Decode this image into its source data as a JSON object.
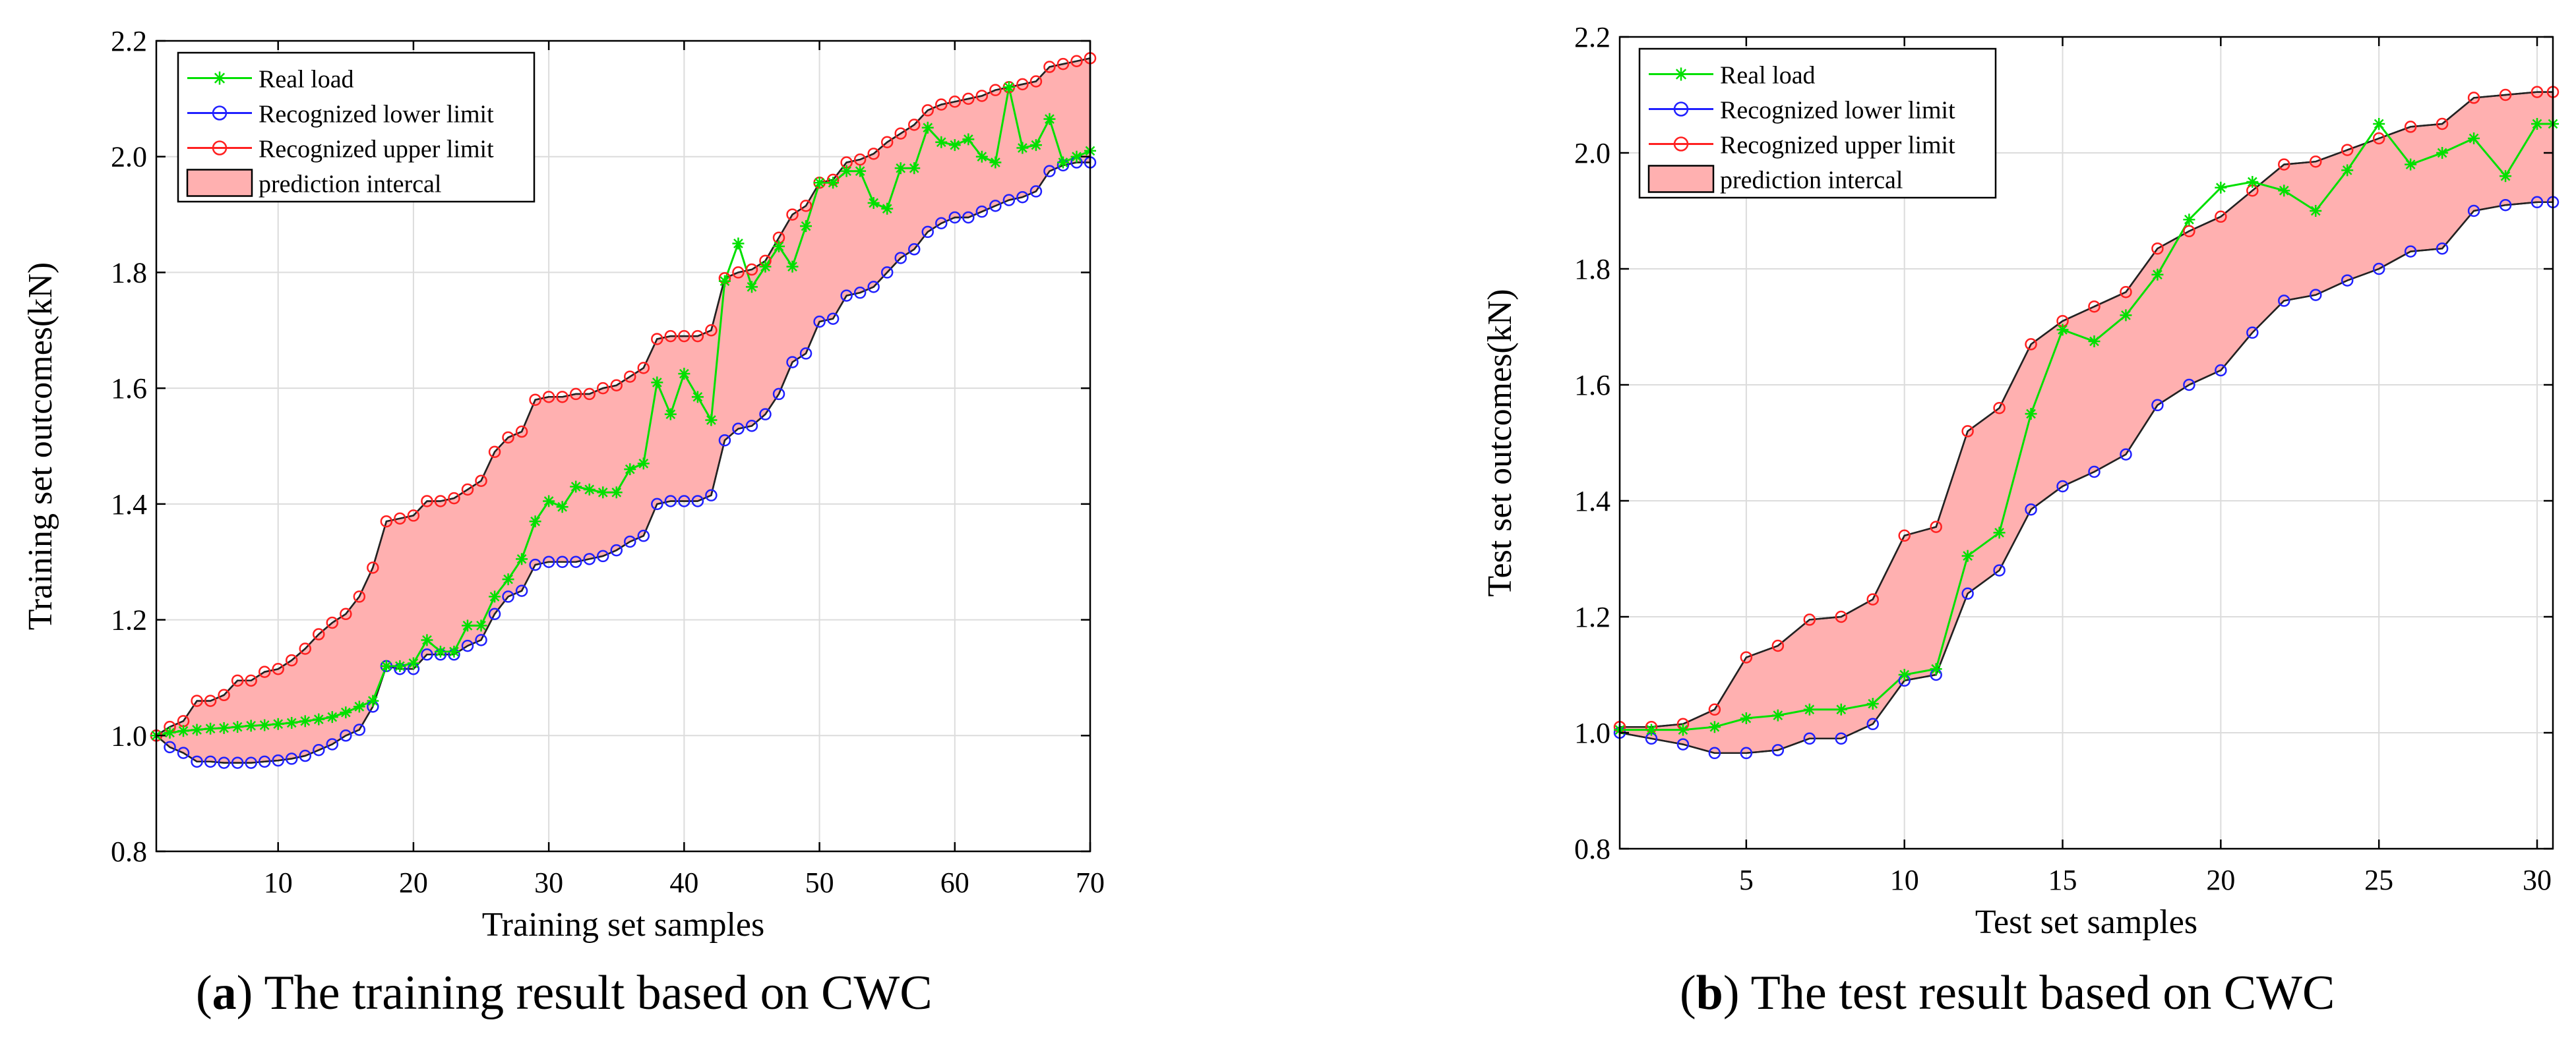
{
  "chart_data": [
    {
      "type": "line",
      "caption_label": "a",
      "caption_text": "The training result based on CWC",
      "xlabel": "Training set samples",
      "ylabel": "Training set outcomes(kN)",
      "xlim": [
        1,
        70
      ],
      "ylim": [
        0.8,
        2.2
      ],
      "xticks": [
        10,
        20,
        30,
        40,
        50,
        60,
        70
      ],
      "yticks": [
        0.8,
        1.0,
        1.2,
        1.4,
        1.6,
        1.8,
        2.0,
        2.2
      ],
      "grid": true,
      "legend": {
        "placement": "top-left",
        "entries": [
          "Real load",
          "Recognized lower limit",
          "Recognized upper limit",
          "prediction intercal"
        ]
      },
      "colors": {
        "real": "#00e000",
        "lower": "#2020ff",
        "upper": "#ff2020",
        "band": "#ffb0b0"
      },
      "x": [
        1,
        2,
        3,
        4,
        5,
        6,
        7,
        8,
        9,
        10,
        11,
        12,
        13,
        14,
        15,
        16,
        17,
        18,
        19,
        20,
        21,
        22,
        23,
        24,
        25,
        26,
        27,
        28,
        29,
        30,
        31,
        32,
        33,
        34,
        35,
        36,
        37,
        38,
        39,
        40,
        41,
        42,
        43,
        44,
        45,
        46,
        47,
        48,
        49,
        50,
        51,
        52,
        53,
        54,
        55,
        56,
        57,
        58,
        59,
        60,
        61,
        62,
        63,
        64,
        65,
        66,
        67,
        68,
        69,
        70
      ],
      "series": [
        {
          "name": "Real load",
          "values": [
            1.0,
            1.005,
            1.008,
            1.01,
            1.012,
            1.013,
            1.015,
            1.017,
            1.018,
            1.02,
            1.022,
            1.025,
            1.028,
            1.032,
            1.04,
            1.05,
            1.06,
            1.12,
            1.12,
            1.125,
            1.165,
            1.145,
            1.145,
            1.19,
            1.19,
            1.24,
            1.27,
            1.305,
            1.37,
            1.405,
            1.395,
            1.43,
            1.425,
            1.42,
            1.42,
            1.46,
            1.47,
            1.61,
            1.555,
            1.625,
            1.585,
            1.545,
            1.785,
            1.85,
            1.775,
            1.81,
            1.845,
            1.81,
            1.88,
            1.955,
            1.955,
            1.975,
            1.975,
            1.92,
            1.91,
            1.98,
            1.98,
            2.05,
            2.025,
            2.02,
            2.03,
            2.0,
            1.99,
            2.12,
            2.015,
            2.02,
            2.065,
            1.99,
            2.0,
            2.01
          ]
        },
        {
          "name": "Recognized lower limit",
          "values": [
            1.0,
            0.98,
            0.97,
            0.955,
            0.955,
            0.953,
            0.953,
            0.953,
            0.955,
            0.957,
            0.96,
            0.965,
            0.975,
            0.985,
            1.0,
            1.01,
            1.05,
            1.12,
            1.115,
            1.115,
            1.14,
            1.14,
            1.14,
            1.155,
            1.165,
            1.21,
            1.24,
            1.25,
            1.295,
            1.3,
            1.3,
            1.3,
            1.305,
            1.31,
            1.32,
            1.335,
            1.345,
            1.4,
            1.405,
            1.405,
            1.405,
            1.415,
            1.51,
            1.53,
            1.535,
            1.555,
            1.59,
            1.645,
            1.66,
            1.715,
            1.72,
            1.76,
            1.765,
            1.775,
            1.8,
            1.825,
            1.84,
            1.87,
            1.885,
            1.895,
            1.895,
            1.905,
            1.915,
            1.925,
            1.93,
            1.94,
            1.975,
            1.985,
            1.99,
            1.99
          ]
        },
        {
          "name": "Recognized upper limit",
          "values": [
            1.0,
            1.015,
            1.025,
            1.06,
            1.06,
            1.07,
            1.095,
            1.095,
            1.11,
            1.115,
            1.13,
            1.15,
            1.175,
            1.195,
            1.21,
            1.24,
            1.29,
            1.37,
            1.375,
            1.38,
            1.405,
            1.405,
            1.41,
            1.425,
            1.44,
            1.49,
            1.515,
            1.525,
            1.58,
            1.585,
            1.585,
            1.59,
            1.59,
            1.6,
            1.605,
            1.62,
            1.635,
            1.685,
            1.69,
            1.69,
            1.69,
            1.7,
            1.79,
            1.8,
            1.805,
            1.82,
            1.86,
            1.9,
            1.915,
            1.955,
            1.96,
            1.99,
            1.995,
            2.005,
            2.025,
            2.04,
            2.055,
            2.08,
            2.09,
            2.095,
            2.1,
            2.105,
            2.115,
            2.12,
            2.125,
            2.13,
            2.155,
            2.16,
            2.165,
            2.17
          ]
        }
      ]
    },
    {
      "type": "line",
      "caption_label": "b",
      "caption_text": "The test result based on CWC",
      "xlabel": "Test set samples",
      "ylabel": "Test set outcomes(kN)",
      "xlim": [
        1,
        30.5
      ],
      "ylim": [
        0.8,
        2.2
      ],
      "xticks": [
        5,
        10,
        15,
        20,
        25,
        30
      ],
      "yticks": [
        0.8,
        1.0,
        1.2,
        1.4,
        1.6,
        1.8,
        2.0,
        2.2
      ],
      "grid": true,
      "legend": {
        "placement": "top-left",
        "entries": [
          "Real load",
          "Recognized lower limit",
          "Recognized upper limit",
          "prediction intercal"
        ]
      },
      "colors": {
        "real": "#00e000",
        "lower": "#2020ff",
        "upper": "#ff2020",
        "band": "#ffb0b0"
      },
      "x": [
        1,
        2,
        3,
        4,
        5,
        6,
        7,
        8,
        9,
        10,
        11,
        12,
        13,
        14,
        15,
        16,
        17,
        18,
        19,
        20,
        21,
        22,
        23,
        24,
        25,
        26,
        27,
        28,
        29,
        30,
        30.5
      ],
      "series": [
        {
          "name": "Real load",
          "values": [
            1.005,
            1.005,
            1.005,
            1.01,
            1.025,
            1.03,
            1.04,
            1.04,
            1.05,
            1.1,
            1.11,
            1.305,
            1.345,
            1.55,
            1.695,
            1.675,
            1.72,
            1.79,
            1.885,
            1.94,
            1.95,
            1.935,
            1.9,
            1.97,
            2.05,
            1.98,
            2.0,
            2.025,
            1.96,
            2.05,
            2.05
          ]
        },
        {
          "name": "Recognized lower limit",
          "values": [
            1.0,
            0.99,
            0.98,
            0.965,
            0.965,
            0.97,
            0.99,
            0.99,
            1.015,
            1.09,
            1.1,
            1.24,
            1.28,
            1.385,
            1.425,
            1.45,
            1.48,
            1.565,
            1.6,
            1.625,
            1.69,
            1.745,
            1.755,
            1.78,
            1.8,
            1.83,
            1.835,
            1.9,
            1.91,
            1.915,
            1.915
          ]
        },
        {
          "name": "Recognized upper limit",
          "values": [
            1.01,
            1.01,
            1.015,
            1.04,
            1.13,
            1.15,
            1.195,
            1.2,
            1.23,
            1.34,
            1.355,
            1.52,
            1.56,
            1.67,
            1.71,
            1.735,
            1.76,
            1.835,
            1.865,
            1.89,
            1.935,
            1.98,
            1.985,
            2.005,
            2.025,
            2.045,
            2.05,
            2.095,
            2.1,
            2.105,
            2.105
          ]
        }
      ]
    }
  ]
}
